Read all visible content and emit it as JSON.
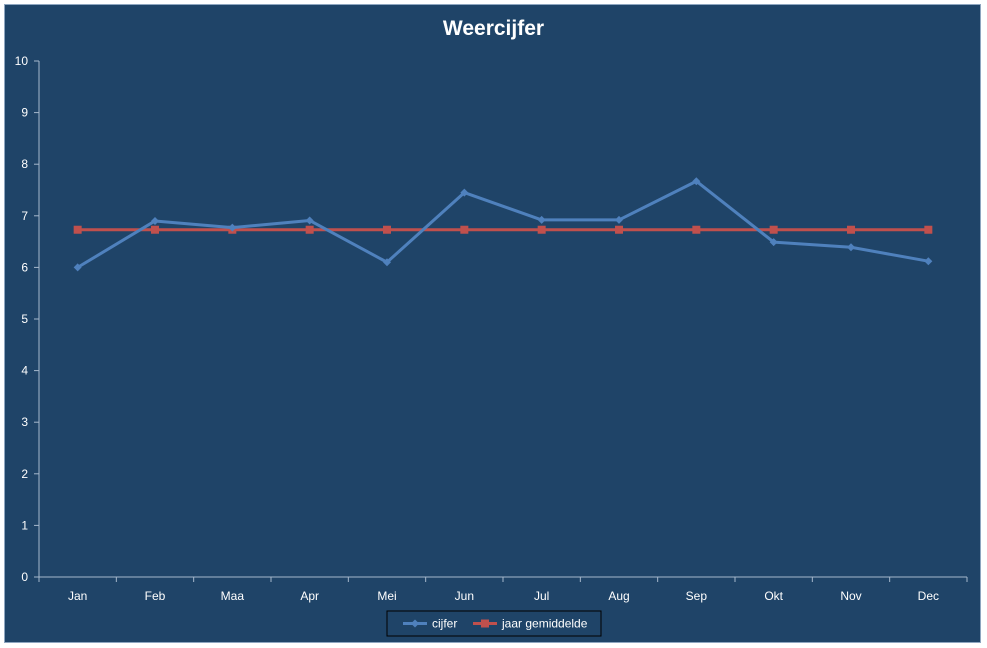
{
  "chart_data": {
    "type": "line",
    "title": "Weercijfer",
    "categories": [
      "Jan",
      "Feb",
      "Maa",
      "Apr",
      "Mei",
      "Jun",
      "Jul",
      "Aug",
      "Sep",
      "Okt",
      "Nov",
      "Dec"
    ],
    "series": [
      {
        "name": "cijfer",
        "color": "#4f81bd",
        "marker": "diamond",
        "values": [
          6.0,
          6.9,
          6.77,
          6.91,
          6.1,
          7.45,
          6.92,
          6.92,
          7.67,
          6.49,
          6.39,
          6.12
        ]
      },
      {
        "name": "jaar gemiddelde",
        "color": "#c0504d",
        "marker": "square",
        "values": [
          6.73,
          6.73,
          6.73,
          6.73,
          6.73,
          6.73,
          6.73,
          6.73,
          6.73,
          6.73,
          6.73,
          6.73
        ]
      }
    ],
    "yticks": [
      "0",
      "1",
      "2",
      "3",
      "4",
      "5",
      "6",
      "7",
      "8",
      "9",
      "10"
    ],
    "ylim": [
      0,
      10
    ],
    "xlabel": "",
    "ylabel": "",
    "grid": false,
    "legend": "bottom",
    "background": "#1f4468",
    "text_color": "#ffffff",
    "axis_color": "#a6b8cc"
  }
}
